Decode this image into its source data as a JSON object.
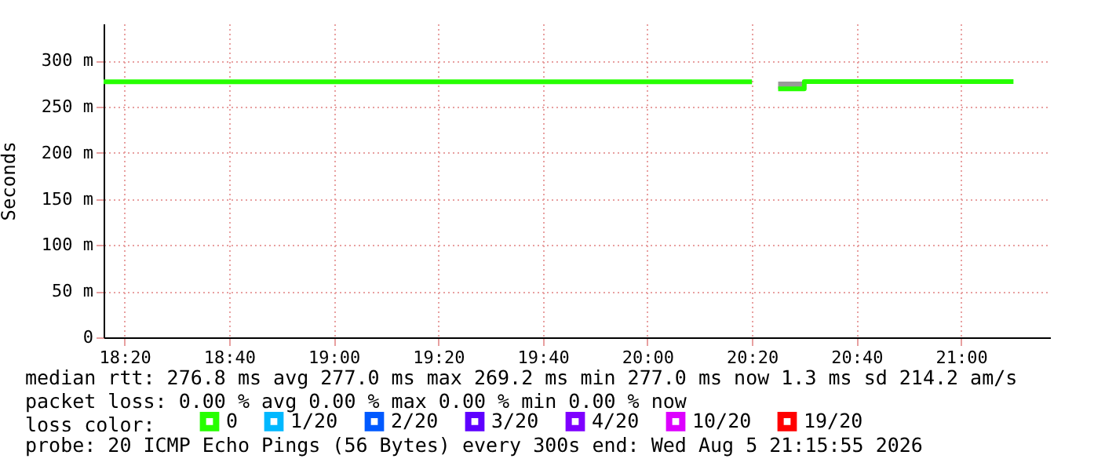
{
  "chart_data": {
    "type": "step",
    "ylabel": "Seconds",
    "legend_title": "loss color:",
    "legend": "bottom",
    "grid": true,
    "x": [
      18.2667,
      20.3333,
      20.3667,
      20.4167,
      20.5,
      21.1667
    ],
    "series": [
      {
        "name": "0",
        "color": "#26ff00",
        "values": [
          276.8,
          276.8,
          null,
          269.2,
          277.0,
          277.0
        ],
        "lower": [
          null,
          null,
          null,
          269.2,
          269.2,
          null
        ],
        "upper": [
          null,
          null,
          null,
          277.0,
          277.0,
          null
        ]
      },
      {
        "name": "1/20",
        "color": "#00b8ff",
        "values": [
          null,
          null,
          null,
          null,
          null,
          null
        ]
      },
      {
        "name": "2/20",
        "color": "#0059ff",
        "values": [
          null,
          null,
          null,
          null,
          null,
          null
        ]
      },
      {
        "name": "3/20",
        "color": "#5e00ff",
        "values": [
          null,
          null,
          null,
          null,
          null,
          null
        ]
      },
      {
        "name": "4/20",
        "color": "#7e00ff",
        "values": [
          null,
          null,
          null,
          null,
          null,
          null
        ]
      },
      {
        "name": "10/20",
        "color": "#dd00ff",
        "values": [
          null,
          null,
          null,
          null,
          null,
          null
        ]
      },
      {
        "name": "19/20",
        "color": "#ff0000",
        "values": [
          null,
          null,
          null,
          null,
          null,
          null
        ]
      }
    ],
    "xlim": [
      18.2667,
      21.2833
    ],
    "xticks": [
      {
        "value": 18.3333,
        "label": "18:20"
      },
      {
        "value": 18.6667,
        "label": "18:40"
      },
      {
        "value": 19,
        "label": "19:00"
      },
      {
        "value": 19.3333,
        "label": "19:20"
      },
      {
        "value": 19.6667,
        "label": "19:40"
      },
      {
        "value": 20,
        "label": "20:00"
      },
      {
        "value": 20.3333,
        "label": "20:20"
      },
      {
        "value": 20.6667,
        "label": "20:40"
      },
      {
        "value": 21,
        "label": "21:00"
      }
    ],
    "ylim": [
      0,
      340
    ],
    "yticks": [
      0,
      {
        "value": 50,
        "label": "50 m"
      },
      {
        "value": 100,
        "label": "100 m"
      },
      {
        "value": 150,
        "label": "150 m"
      },
      {
        "value": 200,
        "label": "200 m"
      },
      {
        "value": 250,
        "label": "250 m"
      },
      {
        "value": 300,
        "label": "300 m"
      }
    ],
    "annotations": [
      "median rtt:  276.8 ms avg  277.0 ms max  269.2 ms min  277.0 ms now  1.3 ms sd  214.2   am/s",
      "packet loss: 0.00 % avg  0.00 % max  0.00 % min  0.00 % now",
      "probe:       20 ICMP Echo Pings (56 Bytes) every 300s                end: Wed Aug  5 21:15:55 2026"
    ]
  }
}
